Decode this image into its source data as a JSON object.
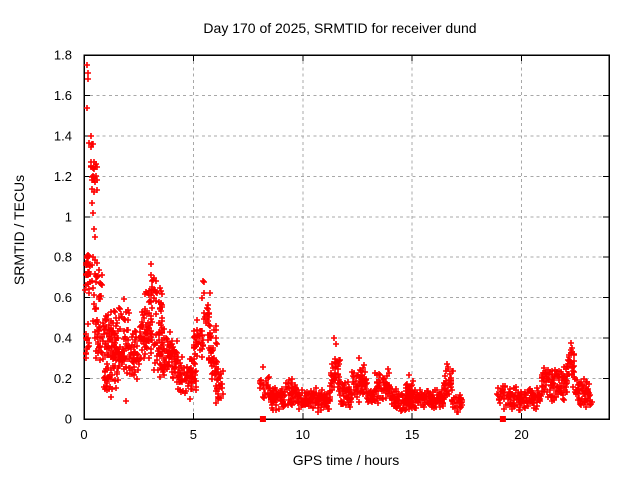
{
  "chart_data": {
    "type": "scatter",
    "title": "Day 170 of 2025, SRMTID for receiver dund",
    "xlabel": "GPS time / hours",
    "ylabel": "SRMTID / TECUs",
    "xlim": [
      0,
      24
    ],
    "ylim": [
      0,
      1.8
    ],
    "xticks": [
      0,
      5,
      10,
      15,
      20
    ],
    "yticks": [
      0,
      0.2,
      0.4,
      0.6,
      0.8,
      1,
      1.2,
      1.4,
      1.6,
      1.8
    ],
    "grid": true,
    "legend_position": "none",
    "marker": {
      "shape": "plus",
      "color": "#ff0000",
      "size": 7
    },
    "zero_marker": {
      "shape": "filled-square",
      "color": "#ff0000",
      "size": 6
    },
    "zero_points": [
      [
        8.18,
        0
      ],
      [
        19.15,
        0
      ]
    ],
    "notable_points": [
      [
        0.14,
        1.75
      ],
      [
        0.16,
        1.71
      ],
      [
        0.17,
        1.68
      ],
      [
        0.15,
        1.54
      ],
      [
        0.33,
        1.4
      ],
      [
        0.38,
        1.36
      ],
      [
        0.3,
        1.25
      ],
      [
        0.4,
        1.18
      ],
      [
        0.35,
        1.07
      ],
      [
        0.42,
        1.02
      ],
      [
        0.46,
        0.94
      ],
      [
        0.52,
        0.9
      ],
      [
        0.1,
        0.3
      ],
      [
        1.25,
        0.11
      ],
      [
        1.9,
        0.09
      ],
      [
        4.85,
        0.1
      ],
      [
        11.45,
        0.4
      ],
      [
        11.5,
        0.37
      ],
      [
        12.55,
        0.3
      ],
      [
        14.85,
        0.22
      ],
      [
        16.6,
        0.27
      ],
      [
        22.28,
        0.375
      ],
      [
        22.33,
        0.35
      ]
    ],
    "clusters": {
      "fields": [
        "x_start_hours",
        "x_end_hours",
        "y_min_tecu",
        "y_max_tecu",
        "count"
      ],
      "rows": [
        [
          0.05,
          0.25,
          0.28,
          0.52,
          12
        ],
        [
          0.06,
          0.3,
          0.55,
          0.88,
          28
        ],
        [
          0.2,
          0.6,
          1.0,
          1.45,
          26
        ],
        [
          0.35,
          0.85,
          0.45,
          0.87,
          28
        ],
        [
          0.5,
          1.5,
          0.24,
          0.55,
          95
        ],
        [
          0.9,
          1.45,
          0.1,
          0.28,
          30
        ],
        [
          1.4,
          2.5,
          0.18,
          0.46,
          115
        ],
        [
          1.55,
          2.1,
          0.46,
          0.62,
          12
        ],
        [
          2.5,
          3.1,
          0.25,
          0.56,
          70
        ],
        [
          2.8,
          3.1,
          0.55,
          0.66,
          9
        ],
        [
          3.05,
          3.3,
          0.45,
          0.8,
          22
        ],
        [
          3.28,
          3.6,
          0.35,
          0.68,
          24
        ],
        [
          3.2,
          4.3,
          0.18,
          0.45,
          105
        ],
        [
          4.25,
          5.15,
          0.12,
          0.33,
          80
        ],
        [
          5.0,
          5.45,
          0.25,
          0.5,
          35
        ],
        [
          5.4,
          5.75,
          0.35,
          0.69,
          26
        ],
        [
          5.7,
          6.1,
          0.18,
          0.48,
          40
        ],
        [
          6.0,
          6.35,
          0.06,
          0.3,
          28
        ],
        [
          8.05,
          8.45,
          0.07,
          0.28,
          22
        ],
        [
          8.4,
          9.2,
          0.04,
          0.17,
          70
        ],
        [
          9.2,
          9.7,
          0.06,
          0.22,
          50
        ],
        [
          9.7,
          11.25,
          0.03,
          0.16,
          135
        ],
        [
          11.25,
          11.7,
          0.1,
          0.34,
          42
        ],
        [
          11.7,
          12.25,
          0.05,
          0.2,
          50
        ],
        [
          12.25,
          12.95,
          0.07,
          0.28,
          60
        ],
        [
          12.95,
          13.3,
          0.05,
          0.17,
          35
        ],
        [
          13.3,
          13.95,
          0.06,
          0.26,
          55
        ],
        [
          13.95,
          15.1,
          0.03,
          0.16,
          100
        ],
        [
          14.7,
          15.05,
          0.09,
          0.22,
          15
        ],
        [
          15.1,
          16.45,
          0.04,
          0.16,
          110
        ],
        [
          16.45,
          16.85,
          0.07,
          0.27,
          40
        ],
        [
          16.85,
          17.3,
          0.03,
          0.14,
          25
        ],
        [
          18.9,
          19.35,
          0.04,
          0.2,
          25
        ],
        [
          19.35,
          20.9,
          0.04,
          0.17,
          125
        ],
        [
          20.9,
          21.25,
          0.09,
          0.3,
          28
        ],
        [
          21.25,
          22.1,
          0.07,
          0.28,
          75
        ],
        [
          22.1,
          22.45,
          0.13,
          0.37,
          30
        ],
        [
          22.45,
          23.1,
          0.05,
          0.22,
          60
        ],
        [
          23.0,
          23.3,
          0.04,
          0.15,
          10
        ]
      ]
    }
  },
  "frame": {
    "background": "#ffffff",
    "border_color": "#000000",
    "grid_color": "#a8a8a8",
    "text_color": "#000000"
  }
}
